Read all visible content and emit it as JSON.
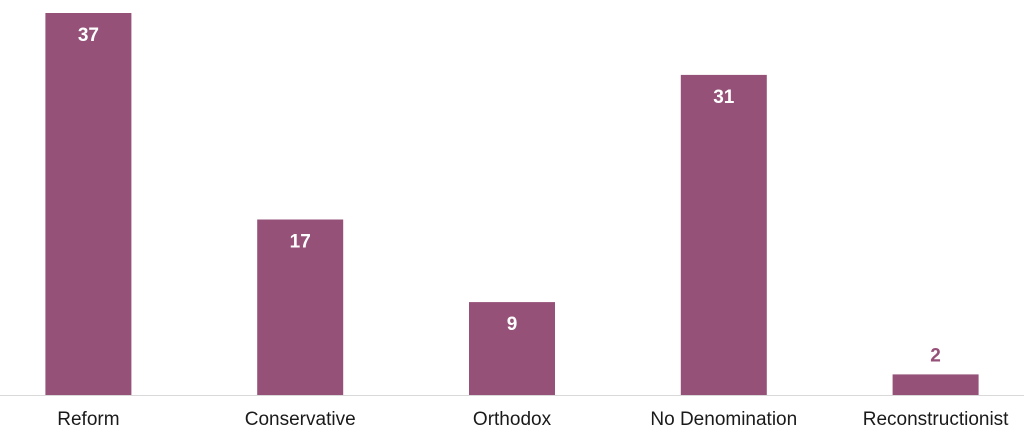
{
  "chart_data": {
    "type": "bar",
    "categories": [
      "Reform",
      "Conservative",
      "Orthodox",
      "No Denomination",
      "Reconstructionist"
    ],
    "values": [
      37,
      17,
      9,
      31,
      2
    ],
    "title": "",
    "xlabel": "",
    "ylabel": "",
    "ylim": [
      0,
      37
    ],
    "grid": false,
    "legend": "none",
    "bar_color": "#955178",
    "inside_label_color": "#ffffff",
    "outside_label_color": "#955178",
    "axis_color": "#d9d9d9"
  }
}
